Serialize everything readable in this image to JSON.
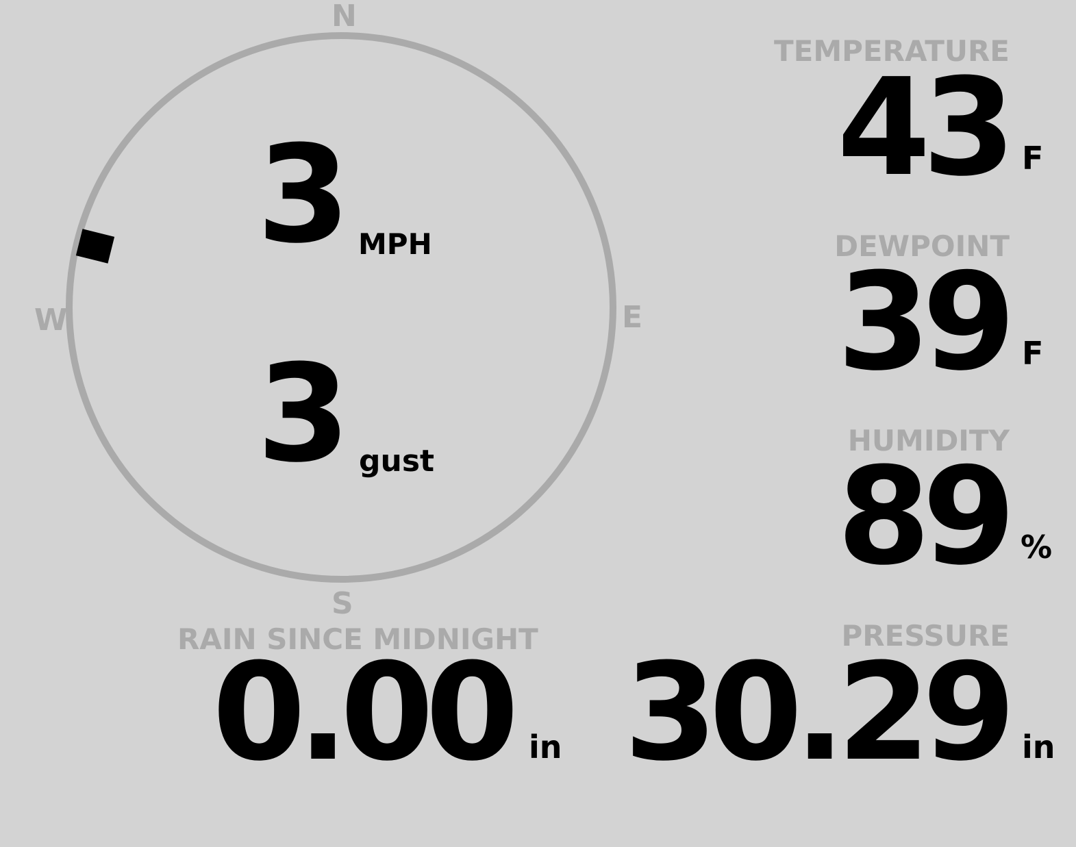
{
  "wind": {
    "compass": {
      "n": "N",
      "e": "E",
      "s": "S",
      "w": "W"
    },
    "direction_deg": 284,
    "speed": "3",
    "speed_unit": "MPH",
    "gust": "3",
    "gust_unit": "gust",
    "ring_color": "#aaaaaa",
    "marker_color": "#000000"
  },
  "temperature": {
    "label": "TEMPERATURE",
    "value": "43",
    "unit": "F"
  },
  "dewpoint": {
    "label": "DEWPOINT",
    "value": "39",
    "unit": "F"
  },
  "humidity": {
    "label": "HUMIDITY",
    "value": "89",
    "unit": "%"
  },
  "rain": {
    "label": "RAIN SINCE MIDNIGHT",
    "value": "0.00",
    "unit": "in"
  },
  "pressure": {
    "label": "PRESSURE",
    "value": "30.29",
    "unit": "in"
  },
  "colors": {
    "background": "#d3d3d3",
    "label": "#aaaaaa",
    "value": "#000000"
  }
}
